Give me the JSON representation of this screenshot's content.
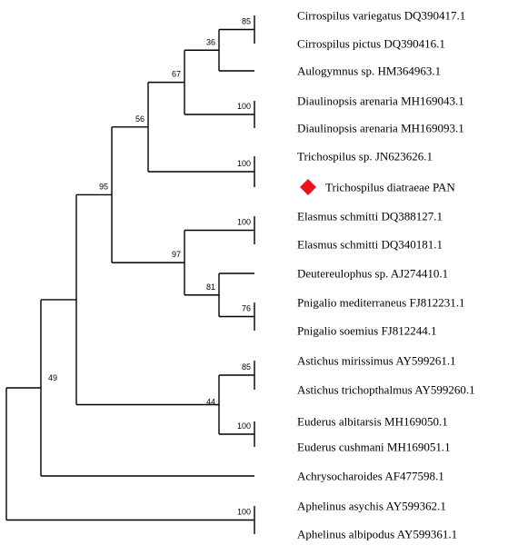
{
  "tree": {
    "marker_color": "#e8141e",
    "marker_shape": "diamond",
    "taxa": [
      {
        "label": "Cirrospilus variegatus DQ390417.1"
      },
      {
        "label": "Cirrospilus pictus DQ390416.1"
      },
      {
        "label": "Aulogymnus sp. HM364963.1"
      },
      {
        "label": "Diaulinopsis arenaria MH169043.1"
      },
      {
        "label": "Diaulinopsis arenaria MH169093.1"
      },
      {
        "label": "Trichospilus sp. JN623626.1"
      },
      {
        "label": "Trichospilus diatraeae PAN",
        "highlight": true
      },
      {
        "label": "Elasmus schmitti DQ388127.1"
      },
      {
        "label": "Elasmus schmitti DQ340181.1"
      },
      {
        "label": "Deutereulophus sp. AJ274410.1"
      },
      {
        "label": "Pnigalio mediterraneus FJ812231.1"
      },
      {
        "label": "Pnigalio soemius FJ812244.1"
      },
      {
        "label": "Astichus mirissimus AY599261.1"
      },
      {
        "label": "Astichus trichopthalmus AY599260.1"
      },
      {
        "label": "Euderus albitarsis MH169050.1"
      },
      {
        "label": "Euderus cushmani MH169051.1"
      },
      {
        "label": "Achrysocharoides AF477598.1"
      },
      {
        "label": "Aphelinus asychis AY599362.1"
      },
      {
        "label": "Aphelinus albipodus AY599361.1"
      }
    ],
    "nodes": [
      {
        "id": "n_cv_cp",
        "children": [
          0,
          1
        ],
        "support": "85"
      },
      {
        "id": "n_cirr_aulo",
        "children": [
          "n_cv_cp",
          2
        ],
        "support": "36"
      },
      {
        "id": "n_diaul",
        "children": [
          3,
          4
        ],
        "support": "100"
      },
      {
        "id": "n_67",
        "children": [
          "n_cirr_aulo",
          "n_diaul"
        ],
        "support": "67"
      },
      {
        "id": "n_trich",
        "children": [
          5,
          6
        ],
        "support": "100"
      },
      {
        "id": "n_56",
        "children": [
          "n_67",
          "n_trich"
        ],
        "support": "56"
      },
      {
        "id": "n_elasmus",
        "children": [
          7,
          8
        ],
        "support": "100"
      },
      {
        "id": "n_pnig",
        "children": [
          10,
          11
        ],
        "support": "76"
      },
      {
        "id": "n_81",
        "children": [
          9,
          "n_pnig"
        ],
        "support": "81"
      },
      {
        "id": "n_97",
        "children": [
          "n_elasmus",
          "n_81"
        ],
        "support": "97"
      },
      {
        "id": "n_95",
        "children": [
          "n_56",
          "n_97"
        ],
        "support": "95"
      },
      {
        "id": "n_astichus",
        "children": [
          12,
          13
        ],
        "support": "85"
      },
      {
        "id": "n_euderus",
        "children": [
          14,
          15
        ],
        "support": "100"
      },
      {
        "id": "n_44",
        "children": [
          "n_astichus",
          "n_euderus"
        ],
        "support": "44"
      },
      {
        "id": "n_49_inner",
        "children": [
          "n_95",
          "n_44"
        ],
        "support": ""
      },
      {
        "id": "n_49",
        "children": [
          "n_49_inner",
          16
        ],
        "support": "49"
      },
      {
        "id": "n_aphel",
        "children": [
          17,
          18
        ],
        "support": "100"
      },
      {
        "id": "root",
        "children": [
          "n_49",
          "n_aphel"
        ],
        "support": ""
      }
    ]
  }
}
